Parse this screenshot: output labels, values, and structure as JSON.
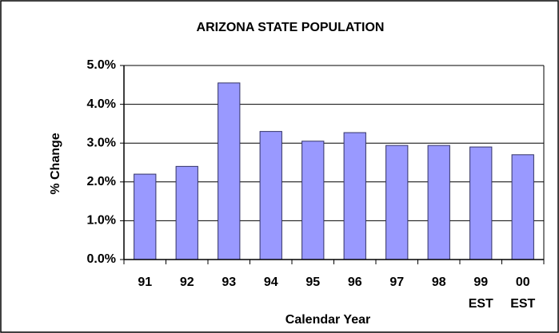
{
  "chart_data": {
    "type": "bar",
    "title": "ARIZONA STATE POPULATION",
    "x_label": "Calendar Year",
    "y_label": "% Change",
    "categories": [
      "91",
      "92",
      "93",
      "94",
      "95",
      "96",
      "97",
      "98",
      "99\nEST",
      "00\nEST"
    ],
    "values": [
      2.2,
      2.4,
      4.55,
      3.3,
      3.05,
      3.27,
      2.94,
      2.94,
      2.9,
      2.7
    ],
    "color": "#9999ff",
    "ylim": [
      0,
      5
    ],
    "yticks": [
      {
        "value": 0,
        "label": "0.0%"
      },
      {
        "value": 1,
        "label": "1.0%"
      },
      {
        "value": 2,
        "label": "2.0%"
      },
      {
        "value": 3,
        "label": "3.0%"
      },
      {
        "value": 4,
        "label": "4.0%"
      },
      {
        "value": 5,
        "label": "5.0%"
      }
    ],
    "grid": true
  }
}
